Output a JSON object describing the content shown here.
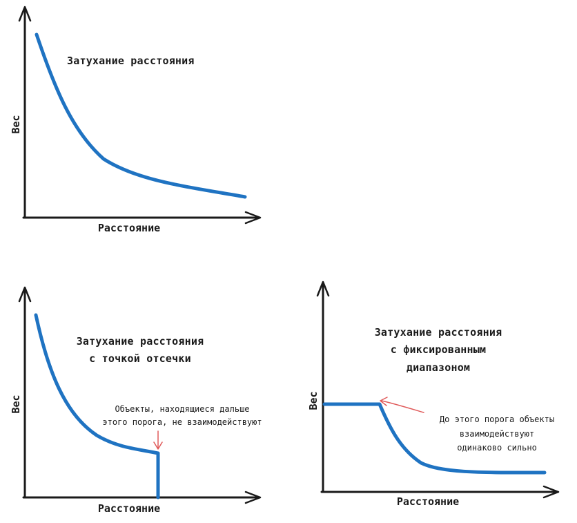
{
  "colors": {
    "curve": "#1f73c2",
    "axis": "#1a1a1a",
    "annotation": "#e05a5a",
    "text": "#1a1a1a"
  },
  "chart_data": [
    {
      "type": "line",
      "title": "Затухание расстояния",
      "xlabel": "Расстояние",
      "ylabel": "Вес",
      "shape": "smooth decay"
    },
    {
      "type": "line",
      "title_lines": [
        "Затухание расстояния",
        "с точкой отсечки"
      ],
      "xlabel": "Расстояние",
      "ylabel": "Вес",
      "shape": "decay then vertical drop to zero",
      "annotation_lines": [
        "Объекты, находящиеся дальше",
        "этого порога, не взаимодействуют"
      ]
    },
    {
      "type": "line",
      "title_lines": [
        "Затухание расстояния",
        "с фиксированным",
        "диапазоном"
      ],
      "xlabel": "Расстояние",
      "ylabel": "Вес",
      "shape": "flat then decay",
      "annotation_lines": [
        "До этого порога объекты",
        "взаимодействуют",
        "одинаково сильно"
      ]
    }
  ]
}
